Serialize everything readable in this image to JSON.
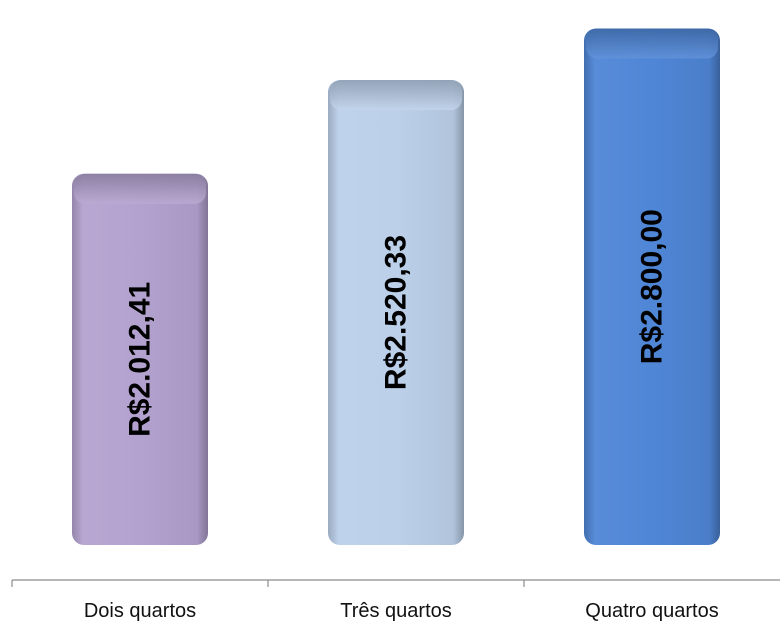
{
  "chart_data": {
    "type": "bar",
    "title": "",
    "xlabel": "",
    "ylabel": "",
    "categories": [
      "Dois quartos",
      "Três quartos",
      "Quatro quartos"
    ],
    "values": [
      2012.41,
      2520.33,
      2800.0
    ],
    "value_labels": [
      "R$2.012,41",
      "R$2.520,33",
      "R$2.800,00"
    ],
    "colors": [
      "#b3a2cf",
      "#bcd0ea",
      "#4f86d6"
    ],
    "ylim": [
      0,
      2900
    ],
    "grid": false,
    "legend": "none"
  }
}
